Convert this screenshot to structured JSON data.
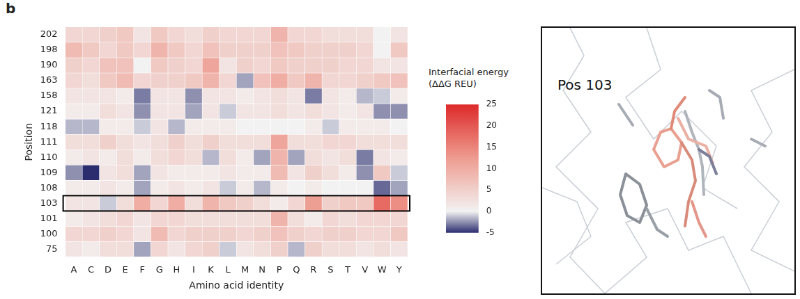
{
  "panel_label": "b",
  "chart_data": {
    "type": "heatmap",
    "x_label": "Amino acid identity",
    "y_label": "Position",
    "categories": [
      "A",
      "C",
      "D",
      "E",
      "F",
      "G",
      "H",
      "I",
      "K",
      "L",
      "M",
      "N",
      "P",
      "Q",
      "R",
      "S",
      "T",
      "V",
      "W",
      "Y"
    ],
    "rows": [
      202,
      198,
      190,
      163,
      158,
      121,
      118,
      111,
      110,
      109,
      108,
      103,
      101,
      100,
      75
    ],
    "cells": [
      [
        4,
        4,
        5,
        6,
        2,
        6,
        4,
        3,
        5,
        4,
        4,
        4,
        9,
        4,
        4,
        3,
        3,
        3,
        0,
        2
      ],
      [
        8,
        6,
        4,
        6,
        4,
        9,
        6,
        4,
        7,
        5,
        5,
        5,
        7,
        6,
        5,
        5,
        5,
        4,
        0,
        6
      ],
      [
        5,
        4,
        7,
        7,
        0,
        6,
        5,
        4,
        11,
        2,
        5,
        4,
        6,
        5,
        5,
        5,
        4,
        4,
        2,
        2
      ],
      [
        4,
        3,
        6,
        8,
        4,
        5,
        5,
        6,
        9,
        4,
        -2,
        7,
        10,
        6,
        9,
        4,
        4,
        5,
        6,
        7
      ],
      [
        2,
        2,
        2,
        1,
        -3,
        2,
        2,
        -2.5,
        2,
        2,
        1,
        2,
        3,
        2,
        -3,
        2,
        1,
        -1.5,
        -1,
        1
      ],
      [
        1,
        1,
        3,
        2,
        -2.5,
        2,
        2,
        -2,
        2,
        -1,
        2,
        2,
        3,
        2,
        3,
        2,
        1,
        2,
        -2.5,
        -2.5
      ],
      [
        -1.5,
        -1.5,
        1,
        1,
        -1,
        2,
        -1.5,
        1,
        1,
        1,
        0,
        0,
        0,
        0,
        1,
        -1,
        1,
        1,
        1,
        0
      ],
      [
        3,
        3,
        5,
        3,
        2,
        3,
        5,
        3,
        5,
        3,
        3,
        3,
        11,
        3,
        3,
        4,
        4,
        3,
        3,
        3
      ],
      [
        1,
        2,
        1,
        3,
        1,
        3,
        4,
        3,
        -1.5,
        3,
        1,
        -2,
        9,
        -2,
        3,
        2,
        3,
        -3,
        2,
        1
      ],
      [
        -2.5,
        -5,
        2,
        3,
        -2,
        2,
        1,
        1,
        1,
        2,
        1,
        1,
        8,
        2,
        5,
        3,
        1,
        -2.5,
        6,
        -1
      ],
      [
        1,
        1,
        2,
        1,
        -2,
        1,
        2,
        1,
        2,
        -1,
        1,
        -1.5,
        1,
        0,
        1,
        0,
        0,
        0,
        -3.5,
        -2
      ],
      [
        2,
        2,
        -1,
        3,
        10,
        4,
        10,
        3,
        9,
        6,
        5,
        3,
        1,
        4,
        12,
        5,
        6,
        6,
        18,
        14
      ],
      [
        1,
        2,
        3,
        4,
        2,
        4,
        4,
        3,
        3,
        3,
        3,
        3,
        9,
        3,
        1,
        4,
        3,
        4,
        4,
        4
      ],
      [
        4,
        4,
        5,
        4,
        2,
        8,
        4,
        5,
        5,
        5,
        4,
        5,
        7,
        5,
        4,
        5,
        5,
        4,
        4,
        6
      ],
      [
        2,
        1,
        3,
        3,
        -2,
        4,
        2,
        4,
        5,
        -1,
        2,
        3,
        5,
        -1.5,
        5,
        3,
        3,
        2,
        3,
        2
      ]
    ],
    "highlighted_row": 103,
    "colorbar": {
      "label": "Interfacial energy (ΔΔG REU)",
      "range": [
        -5,
        25
      ],
      "ticks": [
        25,
        20,
        15,
        10,
        5,
        0,
        -5
      ]
    }
  },
  "structure_panel": {
    "label": "Pos 103"
  }
}
